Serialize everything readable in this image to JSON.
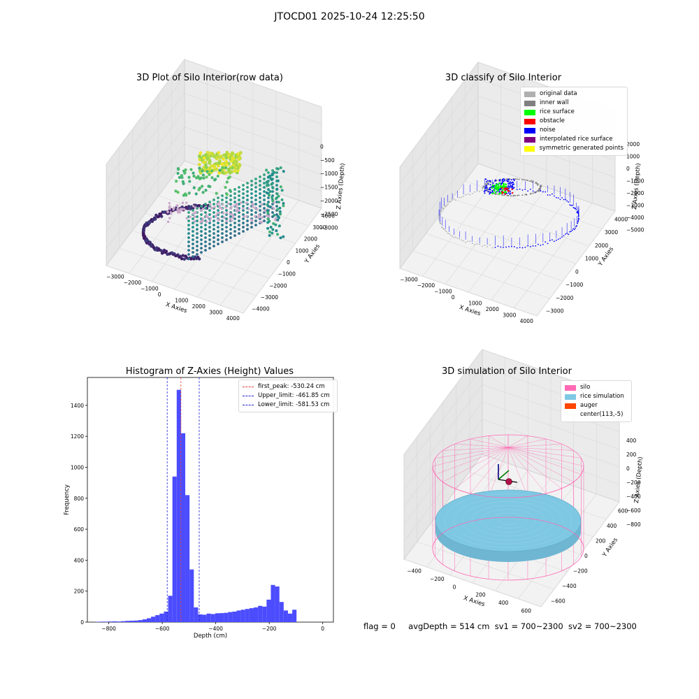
{
  "figure_title": "JTOCD01 2025-10-24 12:25:50",
  "colors": {
    "histogram_bar": "#4c4cff",
    "first_peak_line": "#e04040",
    "limit_line": "#2020d0",
    "silo": "#ff69b4",
    "rice_simulation": "#7ec8e3",
    "auger": "#ff4500",
    "original_data": "#b0b0b0",
    "inner_wall": "#808080",
    "rice_surface": "#00ff00",
    "obstacle": "#ff0000",
    "noise": "#0000ff",
    "interpolated_rice_surface": "#800080",
    "symmetric_generated_points": "#ffff00"
  },
  "status": {
    "flag": "flag = 0",
    "avg_depth": "avgDepth = 514 cm",
    "sv1": "sv1 = 700~2300",
    "sv2": "sv2 = 700~2300"
  },
  "chart_data": [
    {
      "type": "scatter",
      "title": "3D Plot of Silo Interior(row data)",
      "xlabel": "X Axies",
      "ylabel": "Y Axies",
      "zlabel": "Z Axies (Depth)",
      "x_ticks": [
        "−3000",
        "−2000",
        "−1000",
        "0",
        "1000",
        "2000",
        "3000",
        "4000"
      ],
      "y_ticks": [
        "−4000",
        "−3000",
        "−2000",
        "−1000",
        "0",
        "1000",
        "2000",
        "3000",
        "4000"
      ],
      "z_ticks": [
        "0",
        "−500",
        "−1000",
        "−1500",
        "−2000",
        "−2500",
        "−3000"
      ],
      "xlim": [
        -3500,
        4500
      ],
      "ylim": [
        -4000,
        4000
      ],
      "zlim": [
        -3500,
        0
      ],
      "colormap": "viridis"
    },
    {
      "type": "scatter",
      "title": "3D classify of Silo Interior",
      "xlabel": "X Axies",
      "ylabel": "Y Axies",
      "zlabel": "Z Axies (Depth)",
      "x_ticks": [
        "−3000",
        "−2000",
        "−1000",
        "0",
        "1000",
        "2000",
        "3000",
        "4000"
      ],
      "y_ticks": [
        "−3000",
        "−2000",
        "−1000",
        "0",
        "1000",
        "2000",
        "3000",
        "4000"
      ],
      "z_ticks": [
        "2000",
        "1000",
        "0",
        "−1000",
        "−2000",
        "−3000",
        "−4000",
        "−5000"
      ],
      "legend": [
        {
          "label": "original data",
          "color": "#b0b0b0"
        },
        {
          "label": "inner wall",
          "color": "#808080"
        },
        {
          "label": "rice surface",
          "color": "#00ff00"
        },
        {
          "label": "obstacle",
          "color": "#ff0000"
        },
        {
          "label": "noise",
          "color": "#0000ff"
        },
        {
          "label": "interpolated rice surface",
          "color": "#800080"
        },
        {
          "label": "symmetric generated points",
          "color": "#ffff00"
        }
      ],
      "legend_position": "top-right"
    },
    {
      "type": "bar",
      "title": "Histogram of Z-Axies (Height) Values",
      "xlabel": "Depth (cm)",
      "ylabel": "Frequency",
      "xlim": [
        -880,
        40
      ],
      "ylim": [
        0,
        1580
      ],
      "x_ticks": [
        -800,
        -600,
        -400,
        -200,
        0
      ],
      "x_tick_labels": [
        "−800",
        "−600",
        "−400",
        "−200",
        "0"
      ],
      "y_ticks": [
        0,
        200,
        400,
        600,
        800,
        1000,
        1200,
        1400
      ],
      "y_tick_labels": [
        "0",
        "200",
        "400",
        "600",
        "800",
        "1000",
        "1200",
        "1400"
      ],
      "bin_start": -850,
      "bin_width": 16,
      "values": [
        2,
        3,
        3,
        4,
        5,
        4,
        6,
        8,
        9,
        10,
        13,
        18,
        25,
        35,
        45,
        55,
        68,
        170,
        940,
        1500,
        1220,
        820,
        340,
        95,
        50,
        48,
        55,
        52,
        57,
        58,
        60,
        65,
        68,
        75,
        80,
        85,
        90,
        95,
        105,
        100,
        145,
        240,
        230,
        130,
        75,
        55,
        80
      ],
      "vlines": [
        {
          "x": -530.24,
          "style": "dashed",
          "color": "#e04040",
          "label": "first_peak: -530.24 cm"
        },
        {
          "x": -461.85,
          "style": "dashed",
          "color": "#2020d0",
          "label": "Upper_limit: -461.85 cm"
        },
        {
          "x": -581.53,
          "style": "dashed",
          "color": "#2020d0",
          "label": "Lower_limit: -581.53 cm"
        }
      ],
      "legend_position": "top-right"
    },
    {
      "type": "scatter",
      "title": "3D simulation of Silo Interior",
      "xlabel": "X Axies",
      "ylabel": "Y Axies",
      "zlabel": "Z Axies (Depth)",
      "x_ticks": [
        "−400",
        "−200",
        "0",
        "200",
        "400",
        "600"
      ],
      "y_ticks": [
        "−600",
        "−400",
        "−200",
        "0",
        "200",
        "400",
        "600"
      ],
      "z_ticks": [
        "400",
        "200",
        "0",
        "−200",
        "−400",
        "−600",
        "−800"
      ],
      "legend": [
        {
          "label": "silo",
          "color": "#ff69b4"
        },
        {
          "label": "rice simulation",
          "color": "#7ec8e3"
        },
        {
          "label": "auger",
          "color": "#ff4500"
        },
        {
          "label": "center(113,-5)",
          "color": ""
        }
      ],
      "legend_position": "top-right"
    }
  ]
}
